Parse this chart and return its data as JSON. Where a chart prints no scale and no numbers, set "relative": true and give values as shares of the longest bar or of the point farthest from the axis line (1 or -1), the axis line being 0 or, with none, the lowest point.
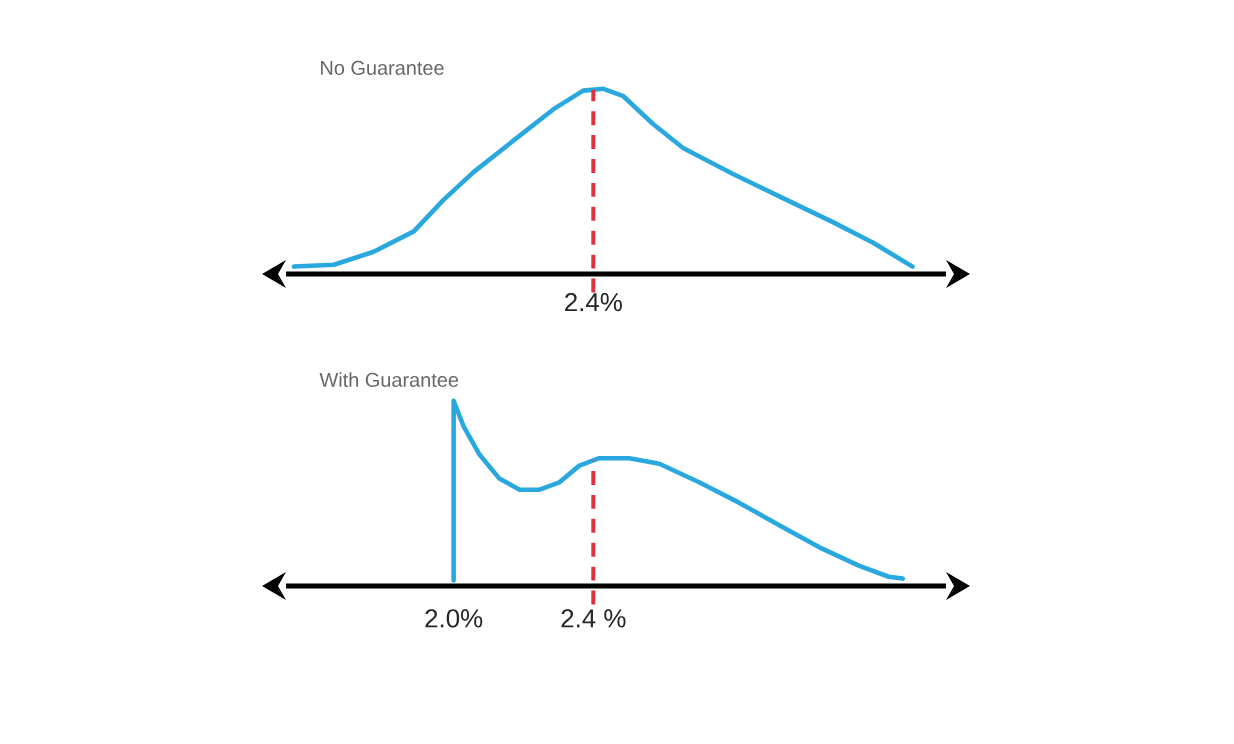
{
  "chart_data": [
    {
      "type": "line",
      "title": "No Guarantee",
      "relative": true,
      "x": [
        1.543,
        1.657,
        1.771,
        1.886,
        1.971,
        2.057,
        2.171,
        2.286,
        2.371,
        2.429,
        2.486,
        2.571,
        2.657,
        2.8,
        2.943,
        3.086,
        3.2,
        3.314
      ],
      "series": [
        {
          "color": "#29a8e0",
          "values": [
            0.04,
            0.05,
            0.12,
            0.23,
            0.4,
            0.55,
            0.72,
            0.89,
            0.99,
            1.0,
            0.96,
            0.81,
            0.68,
            0.54,
            0.41,
            0.28,
            0.17,
            0.04
          ]
        }
      ],
      "xlim": [
        1.52,
        3.41
      ],
      "ref_lines": [
        {
          "axis": "x",
          "value": 2.4,
          "label": "2.4%",
          "color": "#e0323c",
          "line_style": "dashed"
        }
      ]
    },
    {
      "type": "line",
      "title": "With Guarantee",
      "relative": true,
      "x": [
        2.0,
        2.0,
        2.029,
        2.074,
        2.131,
        2.189,
        2.246,
        2.303,
        2.36,
        2.417,
        2.503,
        2.589,
        2.703,
        2.817,
        2.931,
        3.046,
        3.16,
        3.246,
        3.286
      ],
      "series": [
        {
          "color": "#29a8e0",
          "values": [
            0.03,
            1.0,
            0.86,
            0.71,
            0.58,
            0.52,
            0.52,
            0.56,
            0.65,
            0.69,
            0.69,
            0.66,
            0.56,
            0.45,
            0.33,
            0.21,
            0.11,
            0.05,
            0.04
          ]
        }
      ],
      "xlim": [
        1.52,
        3.41
      ],
      "xticks": [
        {
          "value": 2.0,
          "label": "2.0%"
        },
        {
          "value": 2.4,
          "label": "2.4 %"
        }
      ],
      "ref_lines": [
        {
          "axis": "x",
          "value": 2.4,
          "color": "#e0323c",
          "line_style": "dashed"
        }
      ]
    }
  ]
}
